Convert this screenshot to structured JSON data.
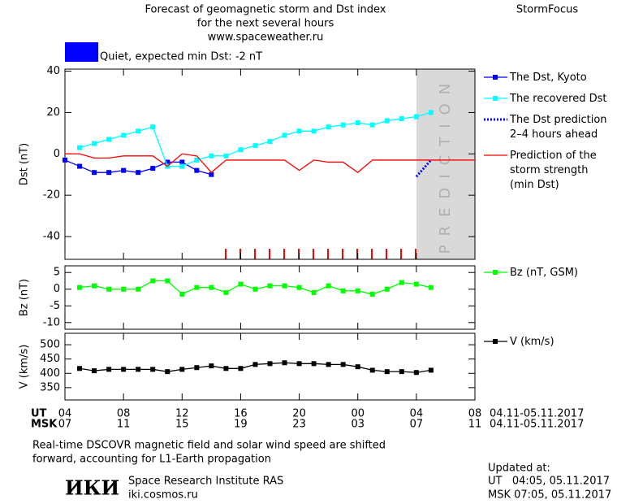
{
  "header": {
    "title_lines": [
      "Forecast of geomagnetic storm and Dst index",
      "for the next several hours",
      "www.spaceweather.ru"
    ],
    "brand": "StormFocus",
    "quiet_label": "Quiet, expected min Dst: -2 nT"
  },
  "chart_data": [
    {
      "type": "line",
      "ylabel": "Dst (nT)",
      "xlim": [
        0,
        28
      ],
      "xticks": [
        0,
        4,
        8,
        12,
        16,
        20,
        24,
        28
      ],
      "ylim": [
        -51,
        41
      ],
      "yticks": [
        40,
        20,
        0,
        -20,
        -40
      ],
      "prediction_span": [
        24,
        28
      ],
      "prediction_label": "PREDICTION",
      "series": [
        {
          "name": "The Dst, Kyoto",
          "color": "#0000ff",
          "marker": "square",
          "style": "solid",
          "x": [
            0,
            1,
            2,
            3,
            4,
            5,
            6,
            7,
            8,
            9,
            10
          ],
          "values": [
            -3,
            -6,
            -9,
            -9,
            -8,
            -9,
            -7,
            -4,
            -4,
            -8,
            -10
          ]
        },
        {
          "name": "The recovered Dst",
          "color": "#00ffff",
          "marker": "square",
          "style": "solid",
          "x": [
            1,
            2,
            3,
            4,
            5,
            6,
            7,
            8,
            9,
            10,
            11,
            12,
            13,
            14,
            15,
            16,
            17,
            18,
            19,
            20,
            21,
            22,
            23,
            24,
            25
          ],
          "values": [
            3,
            5,
            7,
            9,
            11,
            13,
            -6,
            -6,
            -3,
            -1,
            -1,
            2,
            4,
            6,
            9,
            11,
            11,
            13,
            14,
            15,
            14,
            16,
            17,
            18,
            20
          ]
        },
        {
          "name": "The Dst prediction\n2–4 hours ahead",
          "color": "#0000ff",
          "marker": "none",
          "style": "dotted",
          "x": [
            24,
            25
          ],
          "values": [
            -11,
            -3
          ]
        },
        {
          "name": "Prediction of the\nstorm strength\n(min Dst)",
          "color": "#ff0000",
          "marker": "none",
          "style": "solid",
          "x": [
            0,
            1,
            2,
            3,
            4,
            5,
            6,
            7,
            8,
            9,
            10,
            11,
            12,
            13,
            14,
            15,
            16,
            17,
            18,
            19,
            20,
            21,
            22,
            23,
            24,
            25,
            26,
            27,
            28
          ],
          "values": [
            0,
            0,
            -2,
            -2,
            -1,
            -1,
            -1,
            -6,
            0,
            -1,
            -9,
            -3,
            -3,
            -3,
            -3,
            -3,
            -8,
            -3,
            -4,
            -4,
            -9,
            -3,
            -3,
            -3,
            -3,
            -3,
            -3,
            -3,
            -3
          ]
        }
      ]
    },
    {
      "type": "line",
      "ylabel": "Bz (nT)",
      "xlim": [
        0,
        28
      ],
      "xticks": [
        0,
        4,
        8,
        12,
        16,
        20,
        24,
        28
      ],
      "ylim": [
        -12,
        7
      ],
      "yticks": [
        5,
        0,
        -5,
        -10
      ],
      "series": [
        {
          "name": "Bz (nT, GSM)",
          "color": "#00ff00",
          "marker": "square",
          "style": "solid",
          "x": [
            1,
            2,
            3,
            4,
            5,
            6,
            7,
            8,
            9,
            10,
            11,
            12,
            13,
            14,
            15,
            16,
            17,
            18,
            19,
            20,
            21,
            22,
            23,
            24,
            25
          ],
          "values": [
            0.5,
            1,
            0,
            0,
            0,
            2.5,
            2.5,
            -1.5,
            0.5,
            0.5,
            -1,
            1.5,
            0,
            1,
            1,
            0.5,
            -1,
            1,
            -0.5,
            -0.5,
            -1.5,
            0,
            2,
            1.5,
            0.5
          ]
        }
      ]
    },
    {
      "type": "line",
      "ylabel": "V (km/s)",
      "xlim": [
        0,
        28
      ],
      "xticks": [
        {
          "value": 0,
          "label": "04"
        },
        {
          "value": 4,
          "label": "08"
        },
        {
          "value": 8,
          "label": "12"
        },
        {
          "value": 12,
          "label": "16"
        },
        {
          "value": 16,
          "label": "20"
        },
        {
          "value": 20,
          "label": "00"
        },
        {
          "value": 24,
          "label": "04"
        },
        {
          "value": 28,
          "label": "08"
        }
      ],
      "xticks_msk": [
        {
          "value": 0,
          "label": "07"
        },
        {
          "value": 4,
          "label": "11"
        },
        {
          "value": 8,
          "label": "15"
        },
        {
          "value": 12,
          "label": "19"
        },
        {
          "value": 16,
          "label": "23"
        },
        {
          "value": 20,
          "label": "03"
        },
        {
          "value": 24,
          "label": "07"
        },
        {
          "value": 28,
          "label": "11"
        }
      ],
      "xrow_labels": [
        "UT",
        "MSK"
      ],
      "date_range": [
        "04.11-05.11.2017",
        "04.11-05.11.2017"
      ],
      "ylim": [
        307,
        540
      ],
      "yticks": [
        500,
        450,
        400,
        350
      ],
      "series": [
        {
          "name": "V (km/s)",
          "color": "#000000",
          "marker": "square",
          "style": "solid",
          "x": [
            1,
            2,
            3,
            4,
            5,
            6,
            7,
            8,
            9,
            10,
            11,
            12,
            13,
            14,
            15,
            16,
            17,
            18,
            19,
            20,
            21,
            22,
            23,
            24,
            25
          ],
          "values": [
            417,
            409,
            414,
            414,
            414,
            414,
            406,
            414,
            420,
            426,
            417,
            417,
            431,
            434,
            437,
            434,
            434,
            431,
            431,
            423,
            411,
            406,
            406,
            403,
            411
          ]
        }
      ]
    }
  ],
  "footer": {
    "note_lines": [
      "Real-time DSCOVR magnetic field and solar wind speed are shifted",
      "forward, accounting for L1-Earth propagation"
    ],
    "logo": "ИКИ",
    "institute": "Space Research Institute RAS",
    "site": "iki.cosmos.ru",
    "updated_label": "Updated at:",
    "updated_ut": "UT   04:05, 05.11.2017",
    "updated_msk": "MSK 07:05, 05.11.2017"
  }
}
